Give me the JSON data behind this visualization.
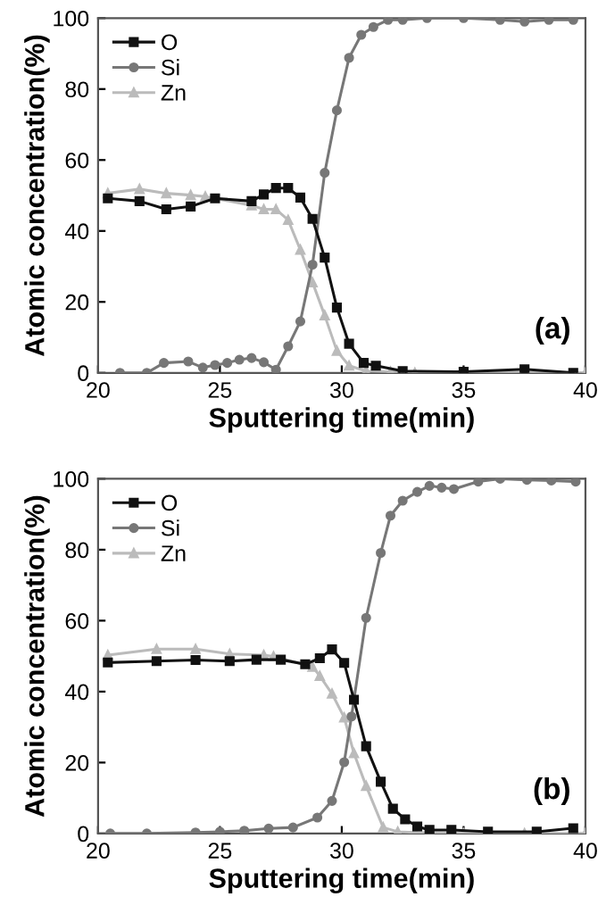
{
  "chart_data": [
    {
      "type": "line",
      "xlabel": "Sputtering time(min)",
      "ylabel": "Atomic concentration(%)",
      "annotations": [
        "(a)"
      ],
      "xlim": [
        20,
        40
      ],
      "ylim": [
        0,
        100
      ],
      "xticks": [
        20,
        25,
        30,
        35,
        40
      ],
      "yticks": [
        0,
        20,
        40,
        60,
        80,
        100
      ],
      "legend": "top left",
      "grid": false,
      "line_style": "solid",
      "series": [
        {
          "name": "O",
          "color": "#111111",
          "marker": "square",
          "x": [
            20.4,
            21.7,
            22.8,
            23.8,
            24.8,
            26.3,
            26.8,
            27.3,
            27.8,
            28.3,
            28.8,
            29.3,
            29.8,
            30.3,
            30.9,
            31.4,
            32.5,
            35,
            37.5,
            39.5
          ],
          "values": [
            49.2,
            48.4,
            46.1,
            46.9,
            49.2,
            48.4,
            50.3,
            52.1,
            52.1,
            49.4,
            43.4,
            32.5,
            18.4,
            8.2,
            2.8,
            2.0,
            0.5,
            0.3,
            1,
            0
          ]
        },
        {
          "name": "Si",
          "color": "#777777",
          "marker": "circle",
          "x": [
            20.9,
            22,
            22.7,
            23.7,
            24.3,
            24.8,
            25.3,
            25.8,
            26.3,
            26.8,
            27.3,
            27.8,
            28.3,
            28.8,
            29.3,
            29.8,
            30.3,
            30.8,
            31.3,
            31.9,
            32.5,
            33.5,
            35,
            36.5,
            37.5,
            38.5,
            39.5
          ],
          "values": [
            0,
            0,
            2.8,
            3.2,
            1.5,
            2.2,
            2.8,
            3.7,
            4.2,
            3.0,
            0.9,
            7.5,
            14.5,
            30.5,
            56.4,
            74,
            88.8,
            95.3,
            97.5,
            99.5,
            99.5,
            100,
            100,
            99.5,
            99,
            99.5,
            99.5
          ]
        },
        {
          "name": "Zn",
          "color": "#bbbbbb",
          "marker": "triangle",
          "x": [
            20.4,
            21.7,
            22.8,
            23.8,
            24.4,
            26.3,
            26.8,
            27.3,
            27.8,
            28.3,
            28.8,
            29.3,
            29.8,
            30.3,
            31,
            32,
            33,
            35,
            37.5,
            40
          ],
          "values": [
            50.6,
            51.8,
            50.6,
            50.1,
            49.7,
            47.2,
            46.1,
            46.1,
            43.1,
            34.7,
            25.5,
            16.2,
            6.2,
            2,
            0.5,
            0.3,
            0,
            0,
            0,
            0
          ]
        }
      ]
    },
    {
      "type": "line",
      "xlabel": "Sputtering time(min)",
      "ylabel": "Atomic concentration(%)",
      "annotations": [
        "(b)"
      ],
      "xlim": [
        20,
        40
      ],
      "ylim": [
        0,
        100
      ],
      "xticks": [
        20,
        25,
        30,
        35,
        40
      ],
      "yticks": [
        0,
        20,
        40,
        60,
        80,
        100
      ],
      "legend": "top left",
      "grid": false,
      "line_style": "solid",
      "series": [
        {
          "name": "O",
          "color": "#111111",
          "marker": "square",
          "x": [
            20.4,
            22.4,
            24,
            25.4,
            26.5,
            27.5,
            28.5,
            29.1,
            29.6,
            30.1,
            30.5,
            31,
            31.6,
            32.1,
            32.6,
            33.1,
            33.6,
            34.5,
            36,
            38,
            39.5
          ],
          "values": [
            48.2,
            48.6,
            48.9,
            48.6,
            49,
            49,
            47.7,
            49.4,
            51.9,
            48.1,
            37.7,
            24.6,
            14.6,
            7,
            4,
            2,
            1,
            1,
            0.5,
            0.5,
            1.5
          ]
        },
        {
          "name": "Si",
          "color": "#777777",
          "marker": "circle",
          "x": [
            20.5,
            22,
            24,
            25,
            26,
            27,
            28,
            29,
            29.6,
            30.1,
            30.4,
            31,
            31.6,
            32,
            32.5,
            33.1,
            33.6,
            34.1,
            34.6,
            35.6,
            36.5,
            37.6,
            38.6,
            39.6
          ],
          "values": [
            0,
            0,
            0.3,
            0.5,
            0.8,
            1.4,
            1.7,
            4.5,
            9.2,
            20.1,
            33,
            60.8,
            79.1,
            89.6,
            93.8,
            96.3,
            98,
            97.5,
            97.1,
            99.2,
            100,
            99.7,
            99.5,
            99.2
          ]
        },
        {
          "name": "Zn",
          "color": "#bbbbbb",
          "marker": "triangle",
          "x": [
            20.4,
            22.4,
            24,
            25.4,
            26.8,
            27.2,
            28.8,
            29.1,
            29.6,
            30.1,
            30.5,
            31,
            31.7,
            32.3,
            33,
            35,
            37.5,
            40
          ],
          "values": [
            50.3,
            52,
            52,
            50.6,
            50.3,
            49.9,
            47,
            44.4,
            39.4,
            32.7,
            22.6,
            13.4,
            1.7,
            0.5,
            0.3,
            0,
            0,
            0
          ]
        }
      ]
    }
  ]
}
